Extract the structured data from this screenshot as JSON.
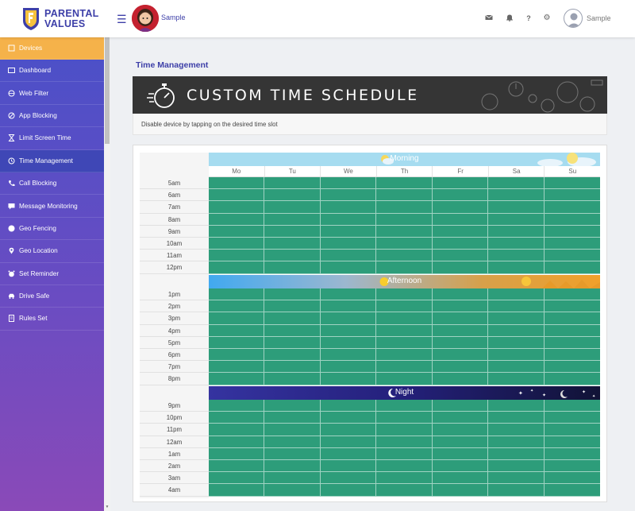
{
  "brand": {
    "line1": "PARENTAL",
    "line2": "VALUES"
  },
  "header": {
    "profile_name": "Sample",
    "user_name": "Sample",
    "icons": [
      "mail-icon",
      "bell-icon",
      "help-icon",
      "gear-icon"
    ]
  },
  "sidebar": {
    "items": [
      {
        "label": "Devices",
        "icon": "tablet-icon"
      },
      {
        "label": "Dashboard",
        "icon": "dashboard-icon"
      },
      {
        "label": "Web Filter",
        "icon": "filter-icon"
      },
      {
        "label": "App Blocking",
        "icon": "block-icon"
      },
      {
        "label": "Limit Screen Time",
        "icon": "hourglass-icon"
      },
      {
        "label": "Time Management",
        "icon": "clock-icon"
      },
      {
        "label": "Call Blocking",
        "icon": "phone-icon"
      },
      {
        "label": "Message Monitoring",
        "icon": "message-icon"
      },
      {
        "label": "Geo Fencing",
        "icon": "globe-icon"
      },
      {
        "label": "Geo Location",
        "icon": "pin-icon"
      },
      {
        "label": "Set Reminder",
        "icon": "alarm-icon"
      },
      {
        "label": "Drive Safe",
        "icon": "car-icon"
      },
      {
        "label": "Rules Set",
        "icon": "document-icon"
      }
    ],
    "active_index": 5
  },
  "main": {
    "page_title": "Time Management",
    "banner_title": "CUSTOM TIME SCHEDULE",
    "subtitle": "Disable device by tapping on the desired time slot",
    "days": [
      "Mo",
      "Tu",
      "We",
      "Th",
      "Fr",
      "Sa",
      "Su"
    ],
    "periods": {
      "morning": {
        "label": "Morning",
        "times": [
          "5am",
          "6am",
          "7am",
          "8am",
          "9am",
          "10am",
          "11am",
          "12pm"
        ]
      },
      "afternoon": {
        "label": "Afternoon",
        "times": [
          "1pm",
          "2pm",
          "3pm",
          "4pm",
          "5pm",
          "6pm",
          "7pm",
          "8pm"
        ]
      },
      "night": {
        "label": "Night",
        "times": [
          "9pm",
          "10pm",
          "11pm",
          "12am",
          "1am",
          "2am",
          "3am",
          "4am"
        ]
      }
    }
  },
  "colors": {
    "slot_enabled": "#2d9d7a",
    "accent": "#3d3fa8",
    "active_menu": "#f5b24a"
  }
}
